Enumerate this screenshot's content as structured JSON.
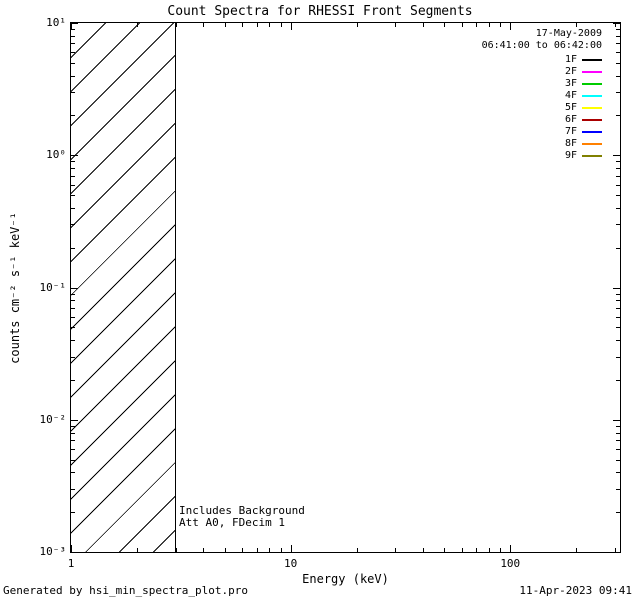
{
  "chart_data": {
    "type": "line",
    "title": "Count Spectra for RHESSI Front Segments",
    "xlabel": "Energy (keV)",
    "ylabel": "counts cm⁻² s⁻¹ keV⁻¹",
    "x_scale": "log",
    "y_scale": "log",
    "xlim": [
      1,
      316
    ],
    "ylim": [
      0.001,
      10
    ],
    "grid": false,
    "x_ticks": [
      {
        "value": 1,
        "label": "1"
      },
      {
        "value": 10,
        "label": "10"
      },
      {
        "value": 100,
        "label": "100"
      }
    ],
    "y_ticks": [
      {
        "value": 0.001,
        "label": "10⁻³"
      },
      {
        "value": 0.01,
        "label": "10⁻²"
      },
      {
        "value": 0.1,
        "label": "10⁻¹"
      },
      {
        "value": 1,
        "label": "10⁰"
      },
      {
        "value": 10,
        "label": "10¹"
      }
    ],
    "hatched_region": {
      "x_min": 1,
      "x_max": 3,
      "style": "diagonal-hatch",
      "note": "no curves plotted; only hatched low-energy region shown"
    },
    "series": [],
    "legend": {
      "position": "top-right",
      "date": "17-May-2009",
      "time_range": "06:41:00 to 06:42:00",
      "entries": [
        {
          "label": "1F",
          "color": "#000000"
        },
        {
          "label": "2F",
          "color": "#FF00FF"
        },
        {
          "label": "3F",
          "color": "#00CC00"
        },
        {
          "label": "4F",
          "color": "#00FFFF"
        },
        {
          "label": "5F",
          "color": "#FFFF00"
        },
        {
          "label": "6F",
          "color": "#AA0000"
        },
        {
          "label": "7F",
          "color": "#0000FF"
        },
        {
          "label": "8F",
          "color": "#FF8000"
        },
        {
          "label": "9F",
          "color": "#808000"
        }
      ]
    },
    "annotations": [
      "Includes Background",
      "Att A0, FDecim 1"
    ]
  },
  "footer": {
    "left": "Generated by hsi_min_spectra_plot.pro",
    "right": "11-Apr-2023 09:41"
  }
}
